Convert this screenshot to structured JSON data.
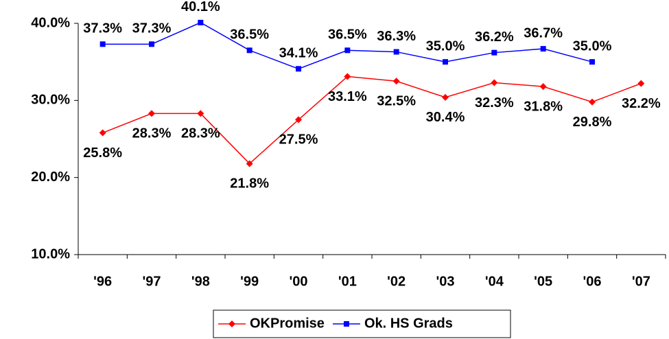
{
  "chart_data": {
    "type": "line",
    "categories": [
      "'96",
      "'97",
      "'98",
      "'99",
      "'00",
      "'01",
      "'02",
      "'03",
      "'04",
      "'05",
      "'06",
      "'07"
    ],
    "series": [
      {
        "name": "OKPromise",
        "color": "#ff0000",
        "marker": "diamond",
        "values": [
          25.8,
          28.3,
          28.3,
          21.8,
          27.5,
          33.1,
          32.5,
          30.4,
          32.3,
          31.8,
          29.8,
          32.2
        ],
        "value_labels": [
          "25.8%",
          "28.3%",
          "28.3%",
          "21.8%",
          "27.5%",
          "33.1%",
          "32.5%",
          "30.4%",
          "32.3%",
          "31.8%",
          "29.8%",
          "32.2%"
        ]
      },
      {
        "name": "Ok. HS Grads",
        "color": "#0000ff",
        "marker": "square",
        "values": [
          37.3,
          37.3,
          40.1,
          36.5,
          34.1,
          36.5,
          36.3,
          35.0,
          36.2,
          36.7,
          35.0,
          null
        ],
        "value_labels": [
          "37.3%",
          "37.3%",
          "40.1%",
          "36.5%",
          "34.1%",
          "36.5%",
          "36.3%",
          "35.0%",
          "36.2%",
          "36.7%",
          "35.0%",
          null
        ]
      }
    ],
    "ylim": [
      10,
      40
    ],
    "yticks": [
      {
        "value": 10,
        "label": "10.0%"
      },
      {
        "value": 20,
        "label": "20.0%"
      },
      {
        "value": 30,
        "label": "30.0%"
      },
      {
        "value": 40,
        "label": "40.0%"
      }
    ],
    "grid": false,
    "legend": "bottom"
  }
}
